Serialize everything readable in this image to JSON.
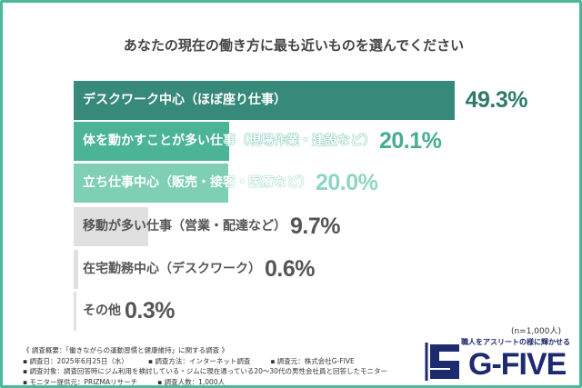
{
  "chart_data": {
    "type": "bar",
    "orientation": "horizontal",
    "title": "あなたの現在の働き方に最も近いものを選んでください",
    "categories": [
      "デスクワーク中心（ほぼ座り仕事）",
      "体を動かすことが多い仕事（現場作業・建設など）",
      "立ち仕事中心（販売・接客・医療など）",
      "移動が多い仕事（営業・配達など）",
      "在宅勤務中心（デスクワーク）",
      "その他"
    ],
    "values": [
      49.3,
      20.1,
      20.0,
      9.7,
      0.6,
      0.3
    ],
    "value_labels": [
      "49.3%",
      "20.1%",
      "20.0%",
      "9.7%",
      "0.6%",
      "0.3%"
    ],
    "bar_colors": [
      "#37897a",
      "#4bb497",
      "#7fcfb5",
      "#e0e0e0",
      "#e0e0e0",
      "#e0e0e0"
    ],
    "value_colors": [
      "#2f7b68",
      "#46ae90",
      "#8fd6c0",
      "#555555",
      "#555555",
      "#555555"
    ],
    "xlim": [
      0,
      49.3
    ]
  },
  "sample": "(n=1,000人)",
  "footer": {
    "heading": "《 調査概要：「働きながらの運動習慣と健康維持」に関する調査 》",
    "date": "▪ 調査日：2025年6月25日（水）",
    "method": "▪ 調査方法：インターネット調査",
    "source": "▪ 調査元：株式会社G-FIVE",
    "target": "▪ 調査対象：調査回答時にジム利用を検討している・ジムに現在通っている20～30代の男性会社員と回答したモニター",
    "provider": "▪ モニター提供元：PRIZMAリサーチ",
    "count": "▪ 調査人数：1,000人"
  },
  "logo": {
    "tagline": "職人をアスリートの様に輝かせる",
    "name": "G-FIVE"
  }
}
